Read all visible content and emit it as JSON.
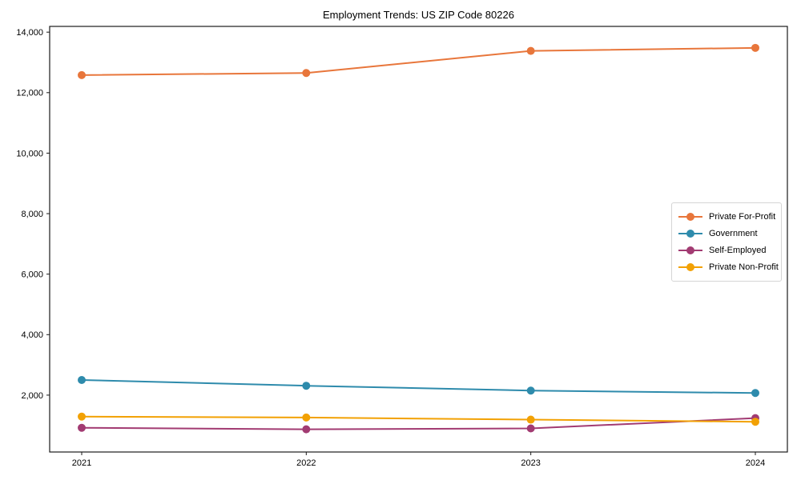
{
  "chart": {
    "title": "Employment Trends: US ZIP Code 80226"
  },
  "chart_data": {
    "type": "line",
    "title": "Employment Trends: US ZIP Code 80226",
    "x_labels": [
      "2021",
      "2022",
      "2023",
      "2024"
    ],
    "series": [
      {
        "name": "Private For-Profit",
        "color": "#e8763b",
        "values": [
          12580,
          12650,
          13380,
          13480
        ]
      },
      {
        "name": "Government",
        "color": "#2e8bac",
        "values": [
          2500,
          2310,
          2150,
          2070
        ]
      },
      {
        "name": "Self-Employed",
        "color": "#a23b72",
        "values": [
          920,
          870,
          900,
          1240
        ]
      },
      {
        "name": "Private Non-Profit",
        "color": "#f2a104",
        "values": [
          1290,
          1260,
          1190,
          1120
        ]
      }
    ],
    "xlabel": "",
    "ylabel": "",
    "ylim": [
      120,
      14190
    ],
    "yticks": [
      2000,
      4000,
      6000,
      8000,
      10000,
      12000,
      14000
    ],
    "ytick_labels": [
      "2,000",
      "4,000",
      "6,000",
      "8,000",
      "10,000",
      "12,000",
      "14,000"
    ],
    "legend_position": "center right",
    "grid": false,
    "marker": "circle",
    "axis_color": "#1a1a1a"
  }
}
